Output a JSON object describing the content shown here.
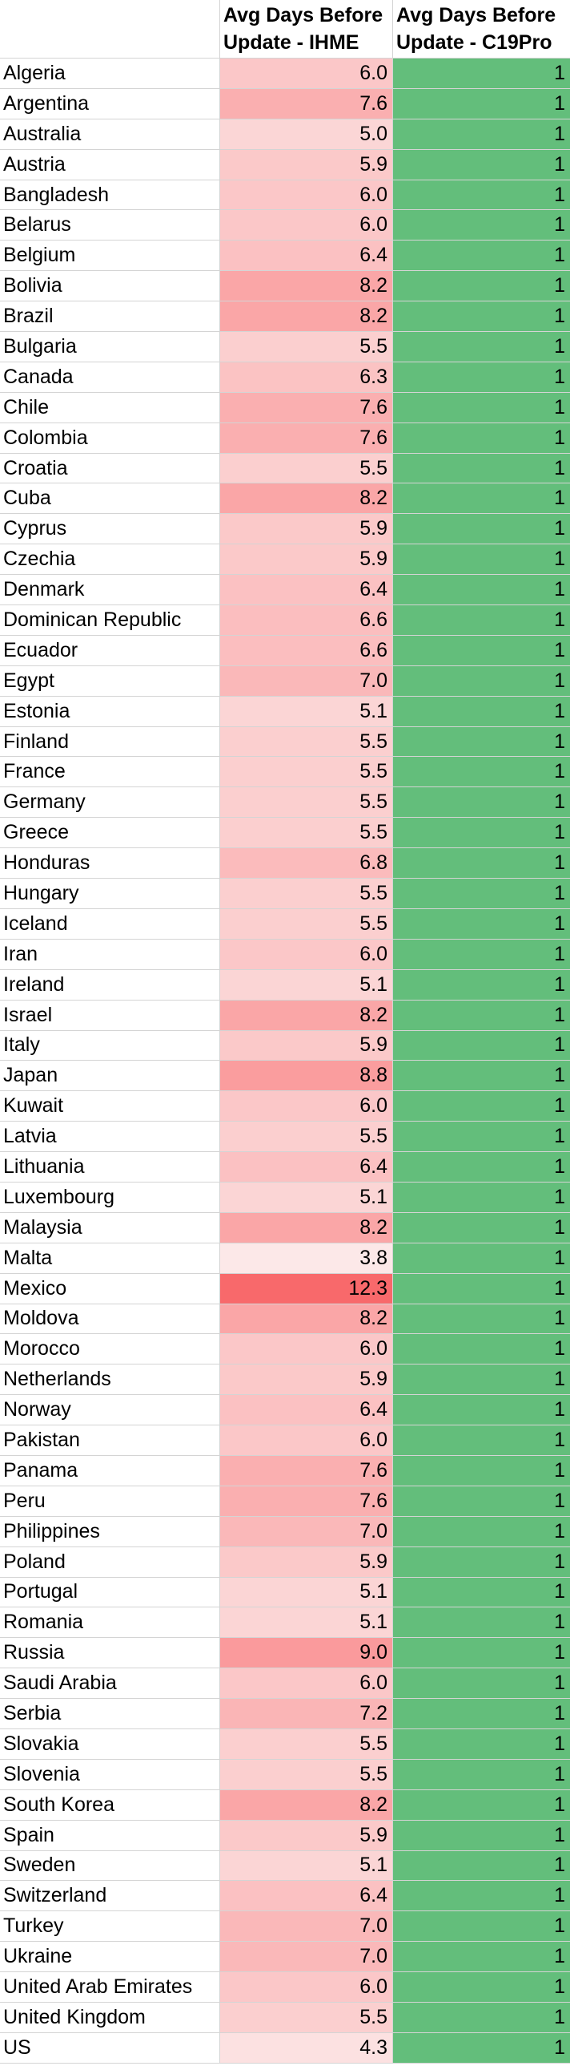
{
  "headers": {
    "country": "",
    "ihme": "Avg Days Before Update - IHME",
    "c19pro": "Avg Days Before Update - C19Pro"
  },
  "colors": {
    "high_value_red": "#f8696b",
    "low_value_pink": "#fce8e8",
    "c19pro_green": "#63be7b",
    "gridline": "#d4d4d4"
  },
  "chart_data": {
    "type": "table",
    "columns": [
      "",
      "Avg Days Before Update - IHME",
      "Avg Days Before Update - C19Pro"
    ],
    "color_scale": {
      "column": "Avg Days Before Update - IHME",
      "min": 3.8,
      "max": 12.3
    },
    "rows": [
      {
        "country": "Algeria",
        "ihme": "6.0",
        "c19pro": "1"
      },
      {
        "country": "Argentina",
        "ihme": "7.6",
        "c19pro": "1"
      },
      {
        "country": "Australia",
        "ihme": "5.0",
        "c19pro": "1"
      },
      {
        "country": "Austria",
        "ihme": "5.9",
        "c19pro": "1"
      },
      {
        "country": "Bangladesh",
        "ihme": "6.0",
        "c19pro": "1"
      },
      {
        "country": "Belarus",
        "ihme": "6.0",
        "c19pro": "1"
      },
      {
        "country": "Belgium",
        "ihme": "6.4",
        "c19pro": "1"
      },
      {
        "country": "Bolivia",
        "ihme": "8.2",
        "c19pro": "1"
      },
      {
        "country": "Brazil",
        "ihme": "8.2",
        "c19pro": "1"
      },
      {
        "country": "Bulgaria",
        "ihme": "5.5",
        "c19pro": "1"
      },
      {
        "country": "Canada",
        "ihme": "6.3",
        "c19pro": "1"
      },
      {
        "country": "Chile",
        "ihme": "7.6",
        "c19pro": "1"
      },
      {
        "country": "Colombia",
        "ihme": "7.6",
        "c19pro": "1"
      },
      {
        "country": "Croatia",
        "ihme": "5.5",
        "c19pro": "1"
      },
      {
        "country": "Cuba",
        "ihme": "8.2",
        "c19pro": "1"
      },
      {
        "country": "Cyprus",
        "ihme": "5.9",
        "c19pro": "1"
      },
      {
        "country": "Czechia",
        "ihme": "5.9",
        "c19pro": "1"
      },
      {
        "country": "Denmark",
        "ihme": "6.4",
        "c19pro": "1"
      },
      {
        "country": "Dominican Republic",
        "ihme": "6.6",
        "c19pro": "1"
      },
      {
        "country": "Ecuador",
        "ihme": "6.6",
        "c19pro": "1"
      },
      {
        "country": "Egypt",
        "ihme": "7.0",
        "c19pro": "1"
      },
      {
        "country": "Estonia",
        "ihme": "5.1",
        "c19pro": "1"
      },
      {
        "country": "Finland",
        "ihme": "5.5",
        "c19pro": "1"
      },
      {
        "country": "France",
        "ihme": "5.5",
        "c19pro": "1"
      },
      {
        "country": "Germany",
        "ihme": "5.5",
        "c19pro": "1"
      },
      {
        "country": "Greece",
        "ihme": "5.5",
        "c19pro": "1"
      },
      {
        "country": "Honduras",
        "ihme": "6.8",
        "c19pro": "1"
      },
      {
        "country": "Hungary",
        "ihme": "5.5",
        "c19pro": "1"
      },
      {
        "country": "Iceland",
        "ihme": "5.5",
        "c19pro": "1"
      },
      {
        "country": "Iran",
        "ihme": "6.0",
        "c19pro": "1"
      },
      {
        "country": "Ireland",
        "ihme": "5.1",
        "c19pro": "1"
      },
      {
        "country": "Israel",
        "ihme": "8.2",
        "c19pro": "1"
      },
      {
        "country": "Italy",
        "ihme": "5.9",
        "c19pro": "1"
      },
      {
        "country": "Japan",
        "ihme": "8.8",
        "c19pro": "1"
      },
      {
        "country": "Kuwait",
        "ihme": "6.0",
        "c19pro": "1"
      },
      {
        "country": "Latvia",
        "ihme": "5.5",
        "c19pro": "1"
      },
      {
        "country": "Lithuania",
        "ihme": "6.4",
        "c19pro": "1"
      },
      {
        "country": "Luxembourg",
        "ihme": "5.1",
        "c19pro": "1"
      },
      {
        "country": "Malaysia",
        "ihme": "8.2",
        "c19pro": "1"
      },
      {
        "country": "Malta",
        "ihme": "3.8",
        "c19pro": "1"
      },
      {
        "country": "Mexico",
        "ihme": "12.3",
        "c19pro": "1"
      },
      {
        "country": "Moldova",
        "ihme": "8.2",
        "c19pro": "1"
      },
      {
        "country": "Morocco",
        "ihme": "6.0",
        "c19pro": "1"
      },
      {
        "country": "Netherlands",
        "ihme": "5.9",
        "c19pro": "1"
      },
      {
        "country": "Norway",
        "ihme": "6.4",
        "c19pro": "1"
      },
      {
        "country": "Pakistan",
        "ihme": "6.0",
        "c19pro": "1"
      },
      {
        "country": "Panama",
        "ihme": "7.6",
        "c19pro": "1"
      },
      {
        "country": "Peru",
        "ihme": "7.6",
        "c19pro": "1"
      },
      {
        "country": "Philippines",
        "ihme": "7.0",
        "c19pro": "1"
      },
      {
        "country": "Poland",
        "ihme": "5.9",
        "c19pro": "1"
      },
      {
        "country": "Portugal",
        "ihme": "5.1",
        "c19pro": "1"
      },
      {
        "country": "Romania",
        "ihme": "5.1",
        "c19pro": "1"
      },
      {
        "country": "Russia",
        "ihme": "9.0",
        "c19pro": "1"
      },
      {
        "country": "Saudi Arabia",
        "ihme": "6.0",
        "c19pro": "1"
      },
      {
        "country": "Serbia",
        "ihme": "7.2",
        "c19pro": "1"
      },
      {
        "country": "Slovakia",
        "ihme": "5.5",
        "c19pro": "1"
      },
      {
        "country": "Slovenia",
        "ihme": "5.5",
        "c19pro": "1"
      },
      {
        "country": "South Korea",
        "ihme": "8.2",
        "c19pro": "1"
      },
      {
        "country": "Spain",
        "ihme": "5.9",
        "c19pro": "1"
      },
      {
        "country": "Sweden",
        "ihme": "5.1",
        "c19pro": "1"
      },
      {
        "country": "Switzerland",
        "ihme": "6.4",
        "c19pro": "1"
      },
      {
        "country": "Turkey",
        "ihme": "7.0",
        "c19pro": "1"
      },
      {
        "country": "Ukraine",
        "ihme": "7.0",
        "c19pro": "1"
      },
      {
        "country": "United Arab Emirates",
        "ihme": "6.0",
        "c19pro": "1"
      },
      {
        "country": "United Kingdom",
        "ihme": "5.5",
        "c19pro": "1"
      },
      {
        "country": "US",
        "ihme": "4.3",
        "c19pro": "1"
      }
    ]
  }
}
